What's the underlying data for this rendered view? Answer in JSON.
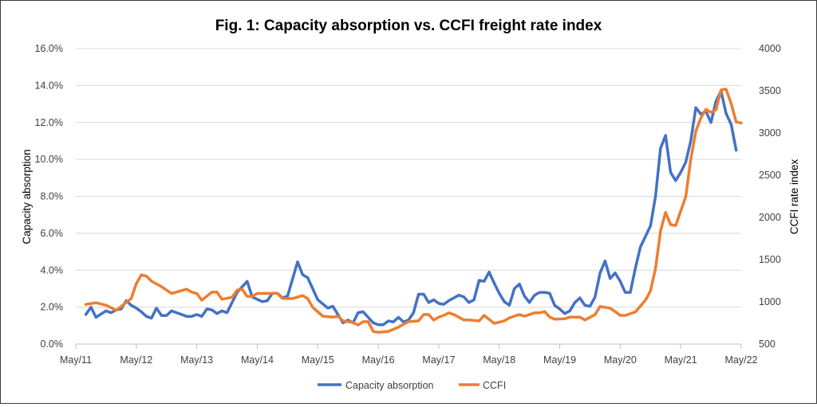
{
  "chart_data": {
    "type": "line",
    "title": "Fig. 1: Capacity absorption vs. CCFI freight rate index",
    "ylabel": "Capacity absorption",
    "y2label": "CCFI rate index",
    "xlabel": "",
    "x_ticks": [
      "May/11",
      "May/12",
      "May/13",
      "May/14",
      "May/15",
      "May/16",
      "May/17",
      "May/18",
      "May/19",
      "May/20",
      "May/21",
      "May/22"
    ],
    "x_range": [
      "2011-05",
      "2022-05"
    ],
    "ylim": [
      0,
      16
    ],
    "y_ticks": [
      "0.0%",
      "2.0%",
      "4.0%",
      "6.0%",
      "8.0%",
      "10.0%",
      "12.0%",
      "14.0%",
      "16.0%"
    ],
    "y2lim": [
      500,
      4000
    ],
    "y2_ticks": [
      "500",
      "1000",
      "1500",
      "2000",
      "2500",
      "3000",
      "3500",
      "4000"
    ],
    "grid": "horizontal",
    "legend_position": "bottom",
    "series": [
      {
        "name": "Capacity absorption",
        "axis": "left",
        "unit": "%",
        "color": "#4472C4",
        "points": [
          [
            "2011-07",
            1.6
          ],
          [
            "2011-08",
            2.0
          ],
          [
            "2011-09",
            1.45
          ],
          [
            "2011-11",
            1.8
          ],
          [
            "2011-12",
            1.7
          ],
          [
            "2012-01",
            1.85
          ],
          [
            "2012-02",
            1.9
          ],
          [
            "2012-03",
            2.35
          ],
          [
            "2012-04",
            2.1
          ],
          [
            "2012-05",
            1.95
          ],
          [
            "2012-06",
            1.75
          ],
          [
            "2012-07",
            1.5
          ],
          [
            "2012-08",
            1.4
          ],
          [
            "2012-09",
            1.95
          ],
          [
            "2012-10",
            1.55
          ],
          [
            "2012-11",
            1.55
          ],
          [
            "2012-12",
            1.8
          ],
          [
            "2013-01",
            1.7
          ],
          [
            "2013-03",
            1.5
          ],
          [
            "2013-04",
            1.5
          ],
          [
            "2013-05",
            1.6
          ],
          [
            "2013-06",
            1.5
          ],
          [
            "2013-07",
            1.9
          ],
          [
            "2013-08",
            1.85
          ],
          [
            "2013-09",
            1.65
          ],
          [
            "2013-10",
            1.8
          ],
          [
            "2013-11",
            1.7
          ],
          [
            "2014-01",
            2.8
          ],
          [
            "2014-03",
            3.4
          ],
          [
            "2014-04",
            2.55
          ],
          [
            "2014-06",
            2.3
          ],
          [
            "2014-07",
            2.35
          ],
          [
            "2014-08",
            2.75
          ],
          [
            "2014-09",
            2.75
          ],
          [
            "2014-10",
            2.5
          ],
          [
            "2014-11",
            2.6
          ],
          [
            "2015-01",
            4.45
          ],
          [
            "2015-02",
            3.75
          ],
          [
            "2015-03",
            3.6
          ],
          [
            "2015-05",
            2.4
          ],
          [
            "2015-07",
            1.95
          ],
          [
            "2015-08",
            2.05
          ],
          [
            "2015-09",
            1.6
          ],
          [
            "2015-10",
            1.15
          ],
          [
            "2015-11",
            1.3
          ],
          [
            "2015-12",
            1.15
          ],
          [
            "2016-01",
            1.7
          ],
          [
            "2016-02",
            1.75
          ],
          [
            "2016-04",
            1.15
          ],
          [
            "2016-05",
            1.05
          ],
          [
            "2016-06",
            1.05
          ],
          [
            "2016-07",
            1.25
          ],
          [
            "2016-08",
            1.2
          ],
          [
            "2016-09",
            1.45
          ],
          [
            "2016-10",
            1.2
          ],
          [
            "2016-11",
            1.3
          ],
          [
            "2016-12",
            1.7
          ],
          [
            "2017-01",
            2.7
          ],
          [
            "2017-02",
            2.7
          ],
          [
            "2017-03",
            2.25
          ],
          [
            "2017-04",
            2.4
          ],
          [
            "2017-05",
            2.2
          ],
          [
            "2017-06",
            2.15
          ],
          [
            "2017-07",
            2.35
          ],
          [
            "2017-08",
            2.5
          ],
          [
            "2017-09",
            2.65
          ],
          [
            "2017-10",
            2.55
          ],
          [
            "2017-11",
            2.25
          ],
          [
            "2017-12",
            2.4
          ],
          [
            "2018-01",
            3.45
          ],
          [
            "2018-02",
            3.4
          ],
          [
            "2018-03",
            3.9
          ],
          [
            "2018-04",
            3.3
          ],
          [
            "2018-05",
            2.75
          ],
          [
            "2018-06",
            2.3
          ],
          [
            "2018-07",
            2.1
          ],
          [
            "2018-08",
            3.0
          ],
          [
            "2018-09",
            3.25
          ],
          [
            "2018-10",
            2.6
          ],
          [
            "2018-11",
            2.25
          ],
          [
            "2018-12",
            2.65
          ],
          [
            "2019-01",
            2.8
          ],
          [
            "2019-02",
            2.8
          ],
          [
            "2019-03",
            2.75
          ],
          [
            "2019-04",
            2.1
          ],
          [
            "2019-05",
            1.9
          ],
          [
            "2019-06",
            1.65
          ],
          [
            "2019-07",
            1.8
          ],
          [
            "2019-08",
            2.25
          ],
          [
            "2019-09",
            2.5
          ],
          [
            "2019-10",
            2.1
          ],
          [
            "2019-11",
            2.05
          ],
          [
            "2019-12",
            2.55
          ],
          [
            "2020-01",
            3.85
          ],
          [
            "2020-02",
            4.5
          ],
          [
            "2020-03",
            3.55
          ],
          [
            "2020-04",
            3.85
          ],
          [
            "2020-05",
            3.4
          ],
          [
            "2020-06",
            2.8
          ],
          [
            "2020-07",
            2.8
          ],
          [
            "2020-08",
            4.1
          ],
          [
            "2020-09",
            5.25
          ],
          [
            "2020-11",
            6.4
          ],
          [
            "2020-12",
            8.0
          ],
          [
            "2021-01",
            10.6
          ],
          [
            "2021-02",
            11.3
          ],
          [
            "2021-03",
            9.3
          ],
          [
            "2021-04",
            8.85
          ],
          [
            "2021-05",
            9.3
          ],
          [
            "2021-06",
            9.85
          ],
          [
            "2021-07",
            11.0
          ],
          [
            "2021-08",
            12.8
          ],
          [
            "2021-09",
            12.45
          ],
          [
            "2021-10",
            12.6
          ],
          [
            "2021-11",
            12.0
          ],
          [
            "2021-12",
            13.15
          ],
          [
            "2022-01",
            13.7
          ],
          [
            "2022-02",
            12.5
          ],
          [
            "2022-03",
            11.9
          ],
          [
            "2022-04",
            10.5
          ]
        ]
      },
      {
        "name": "CCFI",
        "axis": "right",
        "color": "#ED7D31",
        "points": [
          [
            "2011-07",
            970
          ],
          [
            "2011-09",
            990
          ],
          [
            "2011-11",
            960
          ],
          [
            "2012-01",
            900
          ],
          [
            "2012-02",
            945
          ],
          [
            "2012-04",
            1040
          ],
          [
            "2012-05",
            1215
          ],
          [
            "2012-06",
            1320
          ],
          [
            "2012-07",
            1305
          ],
          [
            "2012-08",
            1245
          ],
          [
            "2012-10",
            1180
          ],
          [
            "2012-12",
            1100
          ],
          [
            "2013-03",
            1150
          ],
          [
            "2013-04",
            1115
          ],
          [
            "2013-05",
            1100
          ],
          [
            "2013-06",
            1020
          ],
          [
            "2013-08",
            1115
          ],
          [
            "2013-09",
            1115
          ],
          [
            "2013-10",
            1030
          ],
          [
            "2013-12",
            1055
          ],
          [
            "2014-01",
            1140
          ],
          [
            "2014-02",
            1150
          ],
          [
            "2014-03",
            1065
          ],
          [
            "2014-04",
            1065
          ],
          [
            "2014-05",
            1100
          ],
          [
            "2014-09",
            1100
          ],
          [
            "2014-10",
            1040
          ],
          [
            "2014-12",
            1040
          ],
          [
            "2015-02",
            1075
          ],
          [
            "2015-03",
            1040
          ],
          [
            "2015-04",
            935
          ],
          [
            "2015-06",
            830
          ],
          [
            "2015-08",
            820
          ],
          [
            "2015-09",
            830
          ],
          [
            "2015-10",
            775
          ],
          [
            "2015-12",
            755
          ],
          [
            "2016-01",
            725
          ],
          [
            "2016-02",
            765
          ],
          [
            "2016-03",
            765
          ],
          [
            "2016-04",
            650
          ],
          [
            "2016-05",
            640
          ],
          [
            "2016-07",
            650
          ],
          [
            "2016-09",
            700
          ],
          [
            "2016-10",
            735
          ],
          [
            "2016-11",
            765
          ],
          [
            "2017-01",
            775
          ],
          [
            "2017-02",
            850
          ],
          [
            "2017-03",
            850
          ],
          [
            "2017-04",
            785
          ],
          [
            "2017-05",
            820
          ],
          [
            "2017-06",
            840
          ],
          [
            "2017-07",
            870
          ],
          [
            "2017-08",
            850
          ],
          [
            "2017-10",
            785
          ],
          [
            "2017-11",
            785
          ],
          [
            "2018-01",
            775
          ],
          [
            "2018-02",
            840
          ],
          [
            "2018-04",
            745
          ],
          [
            "2018-06",
            775
          ],
          [
            "2018-07",
            810
          ],
          [
            "2018-08",
            830
          ],
          [
            "2018-09",
            850
          ],
          [
            "2018-10",
            830
          ],
          [
            "2018-12",
            870
          ],
          [
            "2019-01",
            870
          ],
          [
            "2019-02",
            885
          ],
          [
            "2019-03",
            820
          ],
          [
            "2019-04",
            795
          ],
          [
            "2019-06",
            800
          ],
          [
            "2019-07",
            820
          ],
          [
            "2019-09",
            820
          ],
          [
            "2019-10",
            785
          ],
          [
            "2019-12",
            850
          ],
          [
            "2020-01",
            945
          ],
          [
            "2020-03",
            925
          ],
          [
            "2020-04",
            885
          ],
          [
            "2020-05",
            840
          ],
          [
            "2020-06",
            840
          ],
          [
            "2020-08",
            880
          ],
          [
            "2020-10",
            1020
          ],
          [
            "2020-11",
            1130
          ],
          [
            "2020-12",
            1395
          ],
          [
            "2021-01",
            1840
          ],
          [
            "2021-02",
            2060
          ],
          [
            "2021-03",
            1915
          ],
          [
            "2021-04",
            1905
          ],
          [
            "2021-06",
            2245
          ],
          [
            "2021-07",
            2690
          ],
          [
            "2021-08",
            3020
          ],
          [
            "2021-09",
            3180
          ],
          [
            "2021-10",
            3280
          ],
          [
            "2021-11",
            3245
          ],
          [
            "2021-12",
            3275
          ],
          [
            "2022-01",
            3510
          ],
          [
            "2022-02",
            3520
          ],
          [
            "2022-03",
            3350
          ],
          [
            "2022-04",
            3130
          ],
          [
            "2022-05",
            3120
          ]
        ]
      }
    ]
  }
}
